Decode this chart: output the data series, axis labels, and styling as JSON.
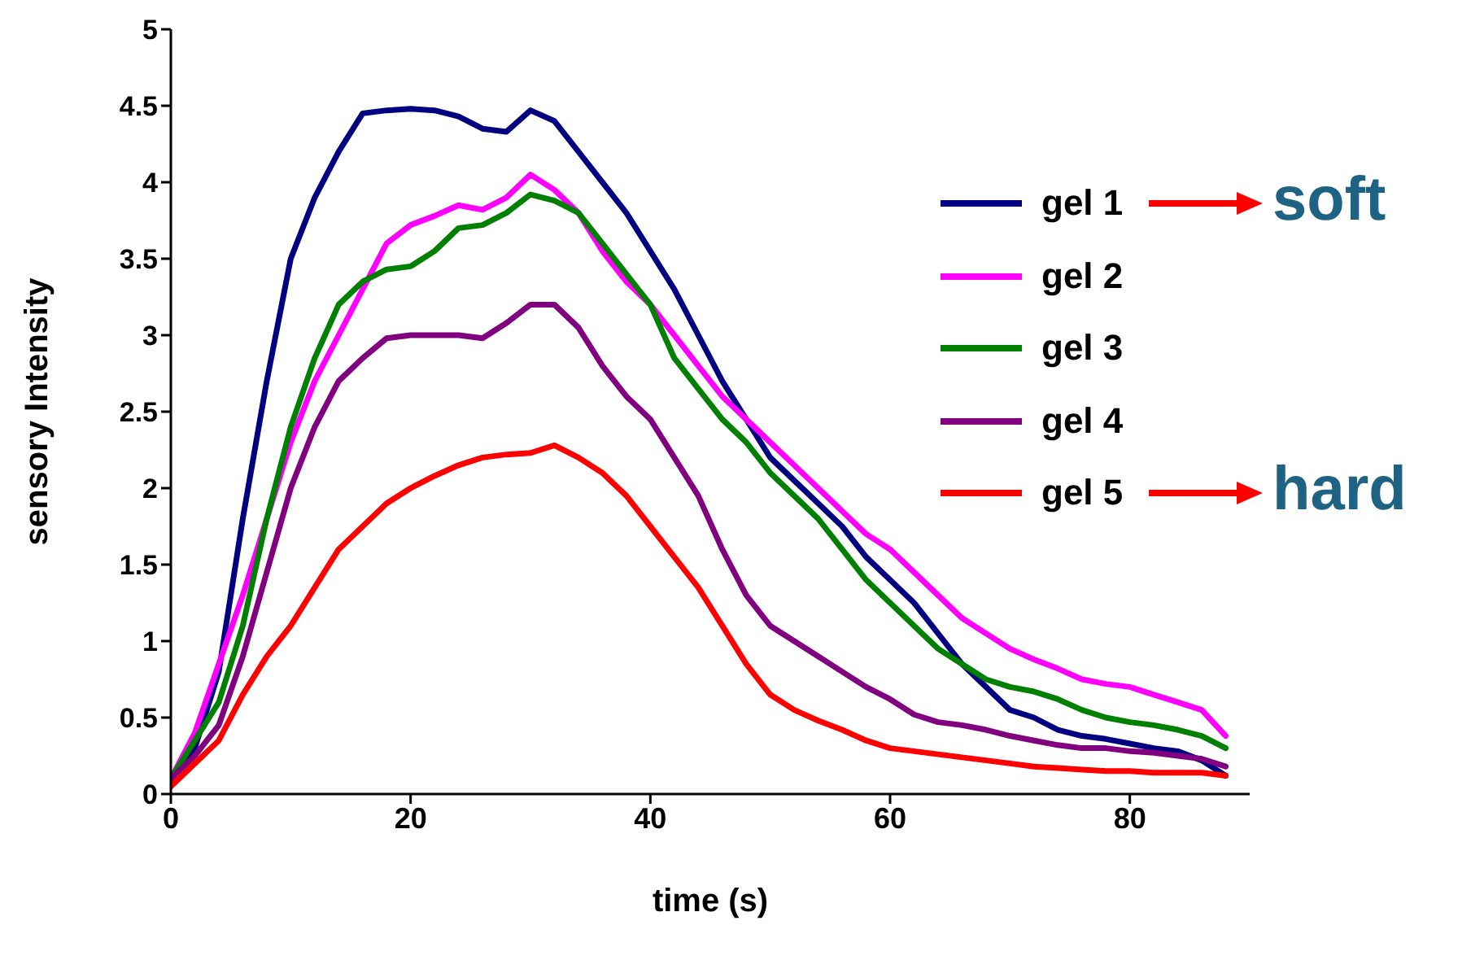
{
  "chart_data": {
    "type": "line",
    "xlabel": "time (s)",
    "ylabel": "sensory Intensity",
    "x": [
      0,
      2,
      4,
      6,
      8,
      10,
      12,
      14,
      16,
      18,
      20,
      22,
      24,
      26,
      28,
      30,
      32,
      34,
      36,
      38,
      40,
      42,
      44,
      46,
      48,
      50,
      52,
      54,
      56,
      58,
      60,
      62,
      64,
      66,
      68,
      70,
      72,
      74,
      76,
      78,
      80,
      82,
      84,
      86,
      88
    ],
    "series": [
      {
        "name": "gel 1",
        "color": "#000080",
        "values": [
          0.1,
          0.3,
          0.8,
          1.8,
          2.7,
          3.5,
          3.9,
          4.2,
          4.45,
          4.47,
          4.48,
          4.47,
          4.43,
          4.35,
          4.33,
          4.47,
          4.4,
          4.2,
          4.0,
          3.8,
          3.55,
          3.3,
          3.0,
          2.7,
          2.45,
          2.2,
          2.05,
          1.9,
          1.75,
          1.55,
          1.4,
          1.25,
          1.05,
          0.85,
          0.7,
          0.55,
          0.5,
          0.42,
          0.38,
          0.36,
          0.33,
          0.3,
          0.28,
          0.22,
          0.12
        ]
      },
      {
        "name": "gel 2",
        "color": "#ff00ff",
        "values": [
          0.1,
          0.4,
          0.85,
          1.3,
          1.8,
          2.3,
          2.7,
          3.0,
          3.3,
          3.6,
          3.72,
          3.78,
          3.85,
          3.82,
          3.9,
          4.05,
          3.95,
          3.8,
          3.55,
          3.35,
          3.2,
          3.0,
          2.8,
          2.6,
          2.45,
          2.3,
          2.15,
          2.0,
          1.85,
          1.7,
          1.6,
          1.45,
          1.3,
          1.15,
          1.05,
          0.95,
          0.88,
          0.82,
          0.75,
          0.72,
          0.7,
          0.65,
          0.6,
          0.55,
          0.38
        ]
      },
      {
        "name": "gel 3",
        "color": "#008000",
        "values": [
          0.1,
          0.35,
          0.6,
          1.1,
          1.8,
          2.4,
          2.85,
          3.2,
          3.35,
          3.43,
          3.45,
          3.55,
          3.7,
          3.72,
          3.8,
          3.92,
          3.88,
          3.8,
          3.6,
          3.4,
          3.2,
          2.85,
          2.65,
          2.45,
          2.3,
          2.1,
          1.95,
          1.8,
          1.6,
          1.4,
          1.25,
          1.1,
          0.95,
          0.85,
          0.75,
          0.7,
          0.67,
          0.62,
          0.55,
          0.5,
          0.47,
          0.45,
          0.42,
          0.38,
          0.3
        ]
      },
      {
        "name": "gel 4",
        "color": "#800080",
        "values": [
          0.1,
          0.25,
          0.45,
          0.9,
          1.45,
          2.0,
          2.4,
          2.7,
          2.85,
          2.98,
          3.0,
          3.0,
          3.0,
          2.98,
          3.08,
          3.2,
          3.2,
          3.05,
          2.8,
          2.6,
          2.45,
          2.2,
          1.95,
          1.6,
          1.3,
          1.1,
          1.0,
          0.9,
          0.8,
          0.7,
          0.62,
          0.52,
          0.47,
          0.45,
          0.42,
          0.38,
          0.35,
          0.32,
          0.3,
          0.3,
          0.28,
          0.27,
          0.25,
          0.23,
          0.18
        ]
      },
      {
        "name": "gel 5",
        "color": "#ff0000",
        "values": [
          0.05,
          0.2,
          0.35,
          0.65,
          0.9,
          1.1,
          1.35,
          1.6,
          1.75,
          1.9,
          2.0,
          2.08,
          2.15,
          2.2,
          2.22,
          2.23,
          2.28,
          2.2,
          2.1,
          1.95,
          1.75,
          1.55,
          1.35,
          1.1,
          0.85,
          0.65,
          0.55,
          0.48,
          0.42,
          0.35,
          0.3,
          0.28,
          0.26,
          0.24,
          0.22,
          0.2,
          0.18,
          0.17,
          0.16,
          0.15,
          0.15,
          0.14,
          0.14,
          0.14,
          0.12
        ]
      }
    ],
    "xlim": [
      0,
      90
    ],
    "xticks": [
      0,
      20,
      40,
      60,
      80
    ],
    "ylim": [
      0,
      5
    ],
    "yticks": [
      0,
      0.5,
      1,
      1.5,
      2,
      2.5,
      3,
      3.5,
      4,
      4.5,
      5
    ],
    "grid": false,
    "legend": "right",
    "marker": "none",
    "line_style": "solid",
    "annotations": [
      "soft",
      "hard"
    ]
  }
}
